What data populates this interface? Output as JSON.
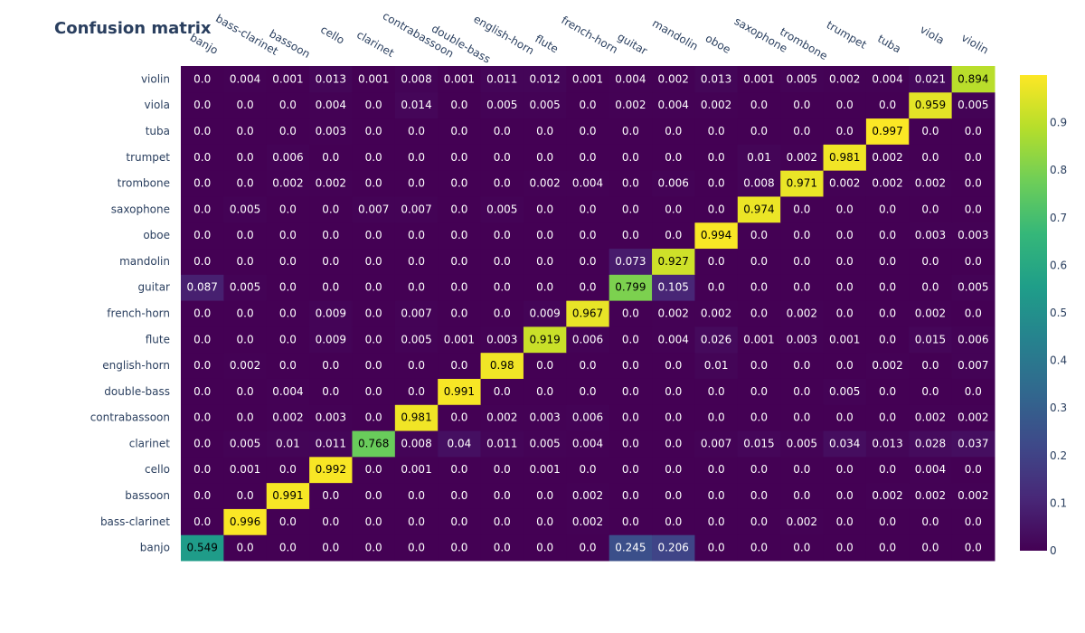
{
  "chart_data": {
    "type": "heatmap",
    "title": "Confusion matrix",
    "xlabel": "",
    "ylabel": "",
    "x_labels": [
      "banjo",
      "bass-clarinet",
      "bassoon",
      "cello",
      "clarinet",
      "contrabassoon",
      "double-bass",
      "english-horn",
      "flute",
      "french-horn",
      "guitar",
      "mandolin",
      "oboe",
      "saxophone",
      "trombone",
      "trumpet",
      "tuba",
      "viola",
      "violin"
    ],
    "y_labels": [
      "banjo",
      "bass-clarinet",
      "bassoon",
      "cello",
      "clarinet",
      "contrabassoon",
      "double-bass",
      "english-horn",
      "flute",
      "french-horn",
      "guitar",
      "mandolin",
      "oboe",
      "saxophone",
      "trombone",
      "trumpet",
      "tuba",
      "viola",
      "violin"
    ],
    "values": [
      [
        "0.549",
        "0.0",
        "0.0",
        "0.0",
        "0.0",
        "0.0",
        "0.0",
        "0.0",
        "0.0",
        "0.0",
        "0.245",
        "0.206",
        "0.0",
        "0.0",
        "0.0",
        "0.0",
        "0.0",
        "0.0",
        "0.0"
      ],
      [
        "0.0",
        "0.996",
        "0.0",
        "0.0",
        "0.0",
        "0.0",
        "0.0",
        "0.0",
        "0.0",
        "0.002",
        "0.0",
        "0.0",
        "0.0",
        "0.0",
        "0.002",
        "0.0",
        "0.0",
        "0.0",
        "0.0"
      ],
      [
        "0.0",
        "0.0",
        "0.991",
        "0.0",
        "0.0",
        "0.0",
        "0.0",
        "0.0",
        "0.0",
        "0.002",
        "0.0",
        "0.0",
        "0.0",
        "0.0",
        "0.0",
        "0.0",
        "0.002",
        "0.002",
        "0.002"
      ],
      [
        "0.0",
        "0.001",
        "0.0",
        "0.992",
        "0.0",
        "0.001",
        "0.0",
        "0.0",
        "0.001",
        "0.0",
        "0.0",
        "0.0",
        "0.0",
        "0.0",
        "0.0",
        "0.0",
        "0.0",
        "0.004",
        "0.0"
      ],
      [
        "0.0",
        "0.005",
        "0.01",
        "0.011",
        "0.768",
        "0.008",
        "0.04",
        "0.011",
        "0.005",
        "0.004",
        "0.0",
        "0.0",
        "0.007",
        "0.015",
        "0.005",
        "0.034",
        "0.013",
        "0.028",
        "0.037"
      ],
      [
        "0.0",
        "0.0",
        "0.002",
        "0.003",
        "0.0",
        "0.981",
        "0.0",
        "0.002",
        "0.003",
        "0.006",
        "0.0",
        "0.0",
        "0.0",
        "0.0",
        "0.0",
        "0.0",
        "0.0",
        "0.002",
        "0.002"
      ],
      [
        "0.0",
        "0.0",
        "0.004",
        "0.0",
        "0.0",
        "0.0",
        "0.991",
        "0.0",
        "0.0",
        "0.0",
        "0.0",
        "0.0",
        "0.0",
        "0.0",
        "0.0",
        "0.005",
        "0.0",
        "0.0",
        "0.0"
      ],
      [
        "0.0",
        "0.002",
        "0.0",
        "0.0",
        "0.0",
        "0.0",
        "0.0",
        "0.98",
        "0.0",
        "0.0",
        "0.0",
        "0.0",
        "0.01",
        "0.0",
        "0.0",
        "0.0",
        "0.002",
        "0.0",
        "0.007"
      ],
      [
        "0.0",
        "0.0",
        "0.0",
        "0.009",
        "0.0",
        "0.005",
        "0.001",
        "0.003",
        "0.919",
        "0.006",
        "0.0",
        "0.004",
        "0.026",
        "0.001",
        "0.003",
        "0.001",
        "0.0",
        "0.015",
        "0.006"
      ],
      [
        "0.0",
        "0.0",
        "0.0",
        "0.009",
        "0.0",
        "0.007",
        "0.0",
        "0.0",
        "0.009",
        "0.967",
        "0.0",
        "0.002",
        "0.002",
        "0.0",
        "0.002",
        "0.0",
        "0.0",
        "0.002",
        "0.0"
      ],
      [
        "0.087",
        "0.005",
        "0.0",
        "0.0",
        "0.0",
        "0.0",
        "0.0",
        "0.0",
        "0.0",
        "0.0",
        "0.799",
        "0.105",
        "0.0",
        "0.0",
        "0.0",
        "0.0",
        "0.0",
        "0.0",
        "0.005"
      ],
      [
        "0.0",
        "0.0",
        "0.0",
        "0.0",
        "0.0",
        "0.0",
        "0.0",
        "0.0",
        "0.0",
        "0.0",
        "0.073",
        "0.927",
        "0.0",
        "0.0",
        "0.0",
        "0.0",
        "0.0",
        "0.0",
        "0.0"
      ],
      [
        "0.0",
        "0.0",
        "0.0",
        "0.0",
        "0.0",
        "0.0",
        "0.0",
        "0.0",
        "0.0",
        "0.0",
        "0.0",
        "0.0",
        "0.994",
        "0.0",
        "0.0",
        "0.0",
        "0.0",
        "0.003",
        "0.003"
      ],
      [
        "0.0",
        "0.005",
        "0.0",
        "0.0",
        "0.007",
        "0.007",
        "0.0",
        "0.005",
        "0.0",
        "0.0",
        "0.0",
        "0.0",
        "0.0",
        "0.974",
        "0.0",
        "0.0",
        "0.0",
        "0.0",
        "0.0"
      ],
      [
        "0.0",
        "0.0",
        "0.002",
        "0.002",
        "0.0",
        "0.0",
        "0.0",
        "0.0",
        "0.002",
        "0.004",
        "0.0",
        "0.006",
        "0.0",
        "0.008",
        "0.971",
        "0.002",
        "0.002",
        "0.002",
        "0.0"
      ],
      [
        "0.0",
        "0.0",
        "0.006",
        "0.0",
        "0.0",
        "0.0",
        "0.0",
        "0.0",
        "0.0",
        "0.0",
        "0.0",
        "0.0",
        "0.0",
        "0.01",
        "0.002",
        "0.981",
        "0.002",
        "0.0",
        "0.0"
      ],
      [
        "0.0",
        "0.0",
        "0.0",
        "0.003",
        "0.0",
        "0.0",
        "0.0",
        "0.0",
        "0.0",
        "0.0",
        "0.0",
        "0.0",
        "0.0",
        "0.0",
        "0.0",
        "0.0",
        "0.997",
        "0.0",
        "0.0"
      ],
      [
        "0.0",
        "0.0",
        "0.0",
        "0.004",
        "0.0",
        "0.014",
        "0.0",
        "0.005",
        "0.005",
        "0.0",
        "0.002",
        "0.004",
        "0.002",
        "0.0",
        "0.0",
        "0.0",
        "0.0",
        "0.959",
        "0.005"
      ],
      [
        "0.0",
        "0.004",
        "0.001",
        "0.013",
        "0.001",
        "0.008",
        "0.001",
        "0.011",
        "0.012",
        "0.001",
        "0.004",
        "0.002",
        "0.013",
        "0.001",
        "0.005",
        "0.002",
        "0.004",
        "0.021",
        "0.894"
      ]
    ],
    "zlim": [
      0,
      1
    ],
    "colorscale": "viridis",
    "colorbar_ticks": [
      "0",
      "0.1",
      "0.2",
      "0.3",
      "0.4",
      "0.5",
      "0.6",
      "0.7",
      "0.8",
      "0.9"
    ],
    "grid": false
  }
}
